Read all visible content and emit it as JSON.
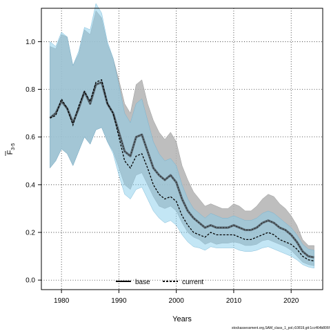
{
  "chart_data": {
    "type": "line",
    "xlabel": "Years",
    "ylabel_main": "F",
    "ylabel_sub": "3-5",
    "xlim": [
      1976.5,
      2025.5
    ],
    "ylim": [
      -0.04,
      1.14
    ],
    "x_ticks": [
      1980,
      1990,
      2000,
      2010,
      2020
    ],
    "x_tick_labels": [
      "1980",
      "1990",
      "2000",
      "2010",
      "2020"
    ],
    "y_ticks": [
      0.0,
      0.2,
      0.4,
      0.6,
      0.8,
      1.0
    ],
    "y_tick_labels": [
      "0.0",
      "0.2",
      "0.4",
      "0.6",
      "0.8",
      "1.0"
    ],
    "grid": true,
    "legend_position": "bottom-center",
    "colors": {
      "base_band": "#b3b3b3",
      "current_band": "#87ceeb",
      "overlap": "#a0b9c7",
      "line": "#000000"
    },
    "x": [
      1978,
      1979,
      1980,
      1981,
      1982,
      1983,
      1984,
      1985,
      1986,
      1987,
      1988,
      1989,
      1990,
      1991,
      1992,
      1993,
      1994,
      1995,
      1996,
      1997,
      1998,
      1999,
      2000,
      2001,
      2002,
      2003,
      2004,
      2005,
      2006,
      2007,
      2008,
      2009,
      2010,
      2011,
      2012,
      2013,
      2014,
      2015,
      2016,
      2017,
      2018,
      2019,
      2020,
      2021,
      2022,
      2023,
      2024
    ],
    "series": [
      {
        "name": "base",
        "style": "solid",
        "values": [
          0.68,
          0.7,
          0.75,
          0.72,
          0.66,
          0.72,
          0.79,
          0.74,
          0.82,
          0.83,
          0.74,
          0.7,
          0.62,
          0.54,
          0.52,
          0.6,
          0.61,
          0.54,
          0.47,
          0.44,
          0.42,
          0.44,
          0.41,
          0.34,
          0.29,
          0.26,
          0.24,
          0.22,
          0.23,
          0.22,
          0.22,
          0.22,
          0.23,
          0.22,
          0.21,
          0.21,
          0.22,
          0.24,
          0.25,
          0.24,
          0.22,
          0.21,
          0.19,
          0.16,
          0.12,
          0.1,
          0.095
        ],
        "lower": [
          0.47,
          0.5,
          0.55,
          0.53,
          0.48,
          0.54,
          0.6,
          0.57,
          0.63,
          0.64,
          0.58,
          0.54,
          0.47,
          0.4,
          0.38,
          0.44,
          0.45,
          0.4,
          0.35,
          0.31,
          0.3,
          0.31,
          0.29,
          0.24,
          0.2,
          0.18,
          0.17,
          0.15,
          0.16,
          0.15,
          0.155,
          0.155,
          0.16,
          0.155,
          0.145,
          0.145,
          0.15,
          0.165,
          0.17,
          0.16,
          0.15,
          0.14,
          0.125,
          0.1,
          0.075,
          0.065,
          0.06
        ],
        "upper": [
          0.98,
          0.97,
          1.03,
          1.02,
          0.9,
          0.95,
          1.05,
          1.03,
          1.13,
          1.1,
          0.99,
          0.93,
          0.84,
          0.74,
          0.7,
          0.82,
          0.84,
          0.74,
          0.67,
          0.62,
          0.59,
          0.62,
          0.58,
          0.48,
          0.42,
          0.37,
          0.34,
          0.31,
          0.32,
          0.31,
          0.3,
          0.3,
          0.32,
          0.31,
          0.29,
          0.29,
          0.31,
          0.34,
          0.36,
          0.35,
          0.32,
          0.3,
          0.27,
          0.23,
          0.17,
          0.145,
          0.145
        ]
      },
      {
        "name": "current",
        "style": "dashed",
        "values": [
          0.68,
          0.69,
          0.76,
          0.72,
          0.65,
          0.73,
          0.79,
          0.75,
          0.83,
          0.84,
          0.74,
          0.7,
          0.6,
          0.5,
          0.47,
          0.52,
          0.53,
          0.47,
          0.4,
          0.36,
          0.34,
          0.35,
          0.33,
          0.27,
          0.23,
          0.2,
          0.19,
          0.18,
          0.2,
          0.19,
          0.19,
          0.19,
          0.19,
          0.18,
          0.17,
          0.17,
          0.18,
          0.19,
          0.2,
          0.19,
          0.17,
          0.16,
          0.15,
          0.13,
          0.1,
          0.085,
          0.08
        ],
        "lower": [
          0.47,
          0.5,
          0.55,
          0.53,
          0.48,
          0.54,
          0.6,
          0.57,
          0.63,
          0.64,
          0.58,
          0.53,
          0.44,
          0.36,
          0.34,
          0.38,
          0.39,
          0.34,
          0.29,
          0.26,
          0.24,
          0.25,
          0.23,
          0.19,
          0.16,
          0.14,
          0.135,
          0.125,
          0.14,
          0.135,
          0.135,
          0.135,
          0.135,
          0.125,
          0.12,
          0.12,
          0.125,
          0.135,
          0.14,
          0.13,
          0.12,
          0.11,
          0.1,
          0.085,
          0.065,
          0.055,
          0.05
        ],
        "upper": [
          1.0,
          0.98,
          1.04,
          1.02,
          0.9,
          0.96,
          1.06,
          1.05,
          1.16,
          1.12,
          1.0,
          0.93,
          0.82,
          0.7,
          0.66,
          0.74,
          0.76,
          0.67,
          0.58,
          0.53,
          0.5,
          0.51,
          0.48,
          0.4,
          0.34,
          0.3,
          0.28,
          0.26,
          0.28,
          0.27,
          0.26,
          0.26,
          0.27,
          0.26,
          0.25,
          0.25,
          0.26,
          0.28,
          0.29,
          0.28,
          0.26,
          0.24,
          0.22,
          0.19,
          0.15,
          0.13,
          0.125
        ]
      }
    ]
  },
  "footnote": "stockassessment.org,SAM_class_1_pol,r10819,git:1cc464b806f"
}
